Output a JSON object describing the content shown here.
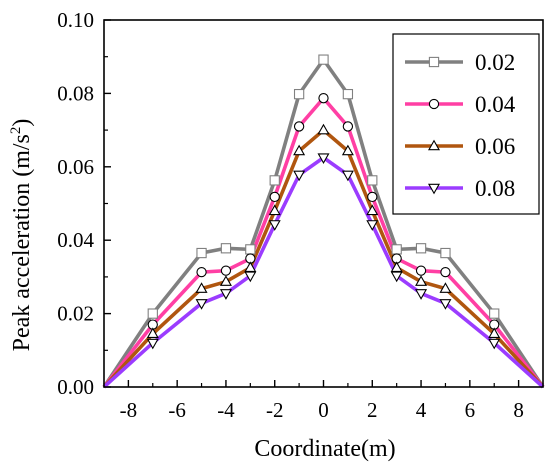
{
  "chart_data": {
    "type": "line",
    "xlabel": "Coordinate(m)",
    "ylabel_main": "Peak acceleration (m/s",
    "ylabel_sup": "2",
    "ylabel_end": ")",
    "xlim": [
      -9,
      9
    ],
    "ylim": [
      0,
      0.1
    ],
    "x_ticks": [
      -8,
      -6,
      -4,
      -2,
      0,
      2,
      4,
      6,
      8
    ],
    "x_tick_labels": [
      "-8",
      "-6",
      "-4",
      "-2",
      "0",
      "2",
      "4",
      "6",
      "8"
    ],
    "y_ticks": [
      0,
      0.02,
      0.04,
      0.06,
      0.08,
      0.1
    ],
    "y_tick_labels": [
      "0.00",
      "0.02",
      "0.04",
      "0.06",
      "0.08",
      "0.10"
    ],
    "legend_position": "top-right",
    "grid": false,
    "x": [
      -9,
      -7,
      -5,
      -4,
      -3,
      -2,
      -1,
      0,
      1,
      2,
      3,
      4,
      5,
      7,
      9
    ],
    "series": [
      {
        "name": "0.02",
        "color": "#808080",
        "marker": "square",
        "values": [
          0.0,
          0.02,
          0.0365,
          0.0378,
          0.0375,
          0.0563,
          0.0798,
          0.0892,
          0.0798,
          0.0563,
          0.0375,
          0.0378,
          0.0365,
          0.02,
          0.0
        ]
      },
      {
        "name": "0.04",
        "color": "#ff3fa4",
        "marker": "circle",
        "values": [
          0.0,
          0.017,
          0.0313,
          0.0317,
          0.035,
          0.0518,
          0.071,
          0.0787,
          0.071,
          0.0518,
          0.035,
          0.0317,
          0.0313,
          0.017,
          0.0
        ]
      },
      {
        "name": "0.06",
        "color": "#b0560f",
        "marker": "triangle-up",
        "values": [
          0.0,
          0.0145,
          0.0268,
          0.0287,
          0.0325,
          0.048,
          0.0643,
          0.07,
          0.0643,
          0.048,
          0.0325,
          0.0287,
          0.0268,
          0.0145,
          0.0
        ]
      },
      {
        "name": "0.08",
        "color": "#9b3cff",
        "marker": "triangle-down",
        "values": [
          0.0,
          0.012,
          0.0228,
          0.0255,
          0.0303,
          0.0443,
          0.0578,
          0.0625,
          0.0578,
          0.0443,
          0.0303,
          0.0255,
          0.0228,
          0.012,
          0.0
        ]
      }
    ]
  }
}
